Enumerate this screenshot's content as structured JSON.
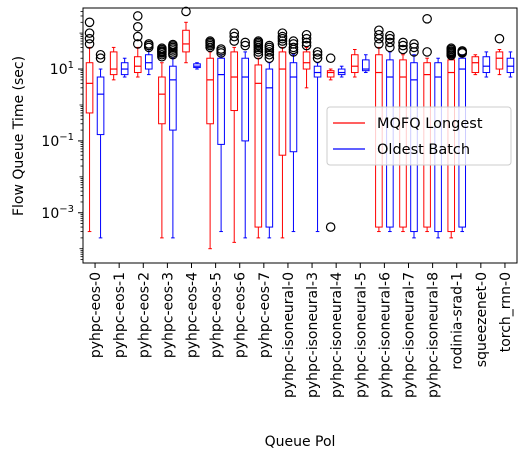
{
  "chart_data": {
    "type": "boxplot",
    "xlabel": "Queue Pol",
    "ylabel": "Flow Queue Time (sec)",
    "yscale": "log",
    "ylim": [
      4e-05,
      500
    ],
    "yticks": [
      {
        "value": 0.001,
        "base": "10",
        "exp": "−3"
      },
      {
        "value": 0.1,
        "base": "10",
        "exp": "−1"
      },
      {
        "value": 10,
        "base": "10",
        "exp": "1"
      }
    ],
    "categories": [
      "pyhpc-eos-0",
      "pyhpc-eos-1",
      "pyhpc-eos-2",
      "pyhpc-eos-3",
      "pyhpc-eos-4",
      "pyhpc-eos-5",
      "pyhpc-eos-6",
      "pyhpc-eos-7",
      "pyhpc-isoneural-0",
      "pyhpc-isoneural-3",
      "pyhpc-isoneural-4",
      "pyhpc-isoneural-5",
      "pyhpc-isoneural-6",
      "pyhpc-isoneural-7",
      "pyhpc-isoneural-8",
      "rodinia-srad-1",
      "squeezenet-0",
      "torch_rnn-0"
    ],
    "legend": {
      "position": "center-right"
    },
    "series": [
      {
        "name": "MQFQ Longest",
        "color": "#ff0000",
        "boxes": [
          {
            "whislo": 0.0003,
            "q1": 0.6,
            "med": 4,
            "q3": 15,
            "whishi": 40,
            "fliers": [
              50,
              70,
              100,
              200
            ]
          },
          {
            "whislo": 5,
            "q1": 7,
            "med": 10,
            "q3": 30,
            "whishi": 40,
            "fliers": []
          },
          {
            "whislo": 6,
            "q1": 8,
            "med": 12,
            "q3": 22,
            "whishi": 40,
            "fliers": [
              50,
              80,
              150,
              300
            ]
          },
          {
            "whislo": 0.0002,
            "q1": 0.3,
            "med": 2,
            "q3": 6,
            "whishi": 15,
            "fliers": [
              22,
              25,
              28,
              30,
              32,
              35,
              38
            ]
          },
          {
            "whislo": 15,
            "q1": 30,
            "med": 50,
            "q3": 120,
            "whishi": 200,
            "fliers": [
              400
            ]
          },
          {
            "whislo": 0.0001,
            "q1": 0.3,
            "med": 5,
            "q3": 20,
            "whishi": 30,
            "fliers": [
              40,
              45,
              50,
              55,
              60
            ]
          },
          {
            "whislo": 0.00015,
            "q1": 0.7,
            "med": 6,
            "q3": 30,
            "whishi": 40,
            "fliers": [
              60,
              80,
              100
            ]
          },
          {
            "whislo": 0.0002,
            "q1": 0.0004,
            "med": 4,
            "q3": 13,
            "whishi": 20,
            "fliers": [
              25,
              30,
              35,
              40,
              45,
              50,
              55,
              60
            ]
          },
          {
            "whislo": 0.0002,
            "q1": 0.04,
            "med": 10,
            "q3": 30,
            "whishi": 40,
            "fliers": [
              50,
              60,
              70,
              80,
              100
            ]
          },
          {
            "whislo": 3,
            "q1": 10,
            "med": 15,
            "q3": 30,
            "whishi": 40,
            "fliers": [
              45,
              55,
              70,
              90
            ]
          },
          {
            "whislo": 5,
            "q1": 6,
            "med": 8,
            "q3": 9,
            "whishi": 10,
            "fliers": [
              0.0004,
              20
            ]
          },
          {
            "whislo": 6,
            "q1": 8,
            "med": 12,
            "q3": 25,
            "whishi": 35,
            "fliers": []
          },
          {
            "whislo": 0.0003,
            "q1": 0.0004,
            "med": 8,
            "q3": 25,
            "whishi": 40,
            "fliers": [
              50,
              70,
              90,
              120
            ]
          },
          {
            "whislo": 0.0003,
            "q1": 0.0004,
            "med": 6,
            "q3": 18,
            "whishi": 25,
            "fliers": [
              35,
              45,
              55
            ]
          },
          {
            "whislo": 0.0003,
            "q1": 0.0004,
            "med": 7,
            "q3": 15,
            "whishi": 20,
            "fliers": [
              30,
              250
            ]
          },
          {
            "whislo": 0.0002,
            "q1": 0.0003,
            "med": 8,
            "q3": 18,
            "whishi": 22,
            "fliers": [
              24,
              26,
              28,
              30,
              32,
              35,
              38
            ]
          },
          {
            "whislo": 7,
            "q1": 8,
            "med": 15,
            "q3": 22,
            "whishi": 25,
            "fliers": []
          },
          {
            "whislo": 7,
            "q1": 10,
            "med": 20,
            "q3": 30,
            "whishi": 35,
            "fliers": [
              70
            ]
          }
        ]
      },
      {
        "name": "Oldest Batch",
        "color": "#0000ff",
        "boxes": [
          {
            "whislo": 0.0002,
            "q1": 0.15,
            "med": 2,
            "q3": 6,
            "whishi": 10,
            "fliers": [
              20,
              25
            ]
          },
          {
            "whislo": 6,
            "q1": 7,
            "med": 10,
            "q3": 15,
            "whishi": 20,
            "fliers": []
          },
          {
            "whislo": 7,
            "q1": 10,
            "med": 15,
            "q3": 25,
            "whishi": 35,
            "fliers": [
              40,
              45,
              50
            ]
          },
          {
            "whislo": 0.0002,
            "q1": 0.2,
            "med": 5,
            "q3": 12,
            "whishi": 20,
            "fliers": [
              25,
              28,
              32,
              36,
              40,
              44,
              48
            ]
          },
          {
            "whislo": 10,
            "q1": 11,
            "med": 12,
            "q3": 14,
            "whishi": 15,
            "fliers": []
          },
          {
            "whislo": 0.0003,
            "q1": 0.08,
            "med": 7,
            "q3": 20,
            "whishi": 25,
            "fliers": [
              28,
              32,
              36
            ]
          },
          {
            "whislo": 0.0002,
            "q1": 0.1,
            "med": 6,
            "q3": 20,
            "whishi": 30,
            "fliers": [
              45,
              55
            ]
          },
          {
            "whislo": 0.0002,
            "q1": 0.0004,
            "med": 3,
            "q3": 10,
            "whishi": 15,
            "fliers": [
              20,
              25,
              30,
              35,
              40,
              45
            ]
          },
          {
            "whislo": 0.0003,
            "q1": 0.05,
            "med": 6,
            "q3": 15,
            "whishi": 25,
            "fliers": [
              30,
              35,
              40,
              50,
              60
            ]
          },
          {
            "whislo": 0.0003,
            "q1": 6,
            "med": 8,
            "q3": 12,
            "whishi": 15,
            "fliers": [
              20,
              25,
              30
            ]
          },
          {
            "whislo": 6,
            "q1": 7,
            "med": 8,
            "q3": 10,
            "whishi": 12,
            "fliers": []
          },
          {
            "whislo": 8,
            "q1": 9,
            "med": 10,
            "q3": 18,
            "whishi": 25,
            "fliers": []
          },
          {
            "whislo": 0.0003,
            "q1": 0.0004,
            "med": 6,
            "q3": 18,
            "whishi": 30,
            "fliers": [
              40,
              55,
              70,
              85
            ]
          },
          {
            "whislo": 0.0002,
            "q1": 0.0003,
            "med": 5,
            "q3": 15,
            "whishi": 25,
            "fliers": [
              30,
              40,
              50
            ]
          },
          {
            "whislo": 0.0002,
            "q1": 0.0003,
            "med": 6,
            "q3": 15,
            "whishi": 20,
            "fliers": []
          },
          {
            "whislo": 0.0003,
            "q1": 0.0004,
            "med": 10,
            "q3": 20,
            "whishi": 25,
            "fliers": [
              28,
              30,
              32
            ]
          },
          {
            "whislo": 6,
            "q1": 8,
            "med": 12,
            "q3": 22,
            "whishi": 30,
            "fliers": []
          },
          {
            "whislo": 6,
            "q1": 8,
            "med": 12,
            "q3": 20,
            "whishi": 30,
            "fliers": []
          }
        ]
      }
    ]
  }
}
